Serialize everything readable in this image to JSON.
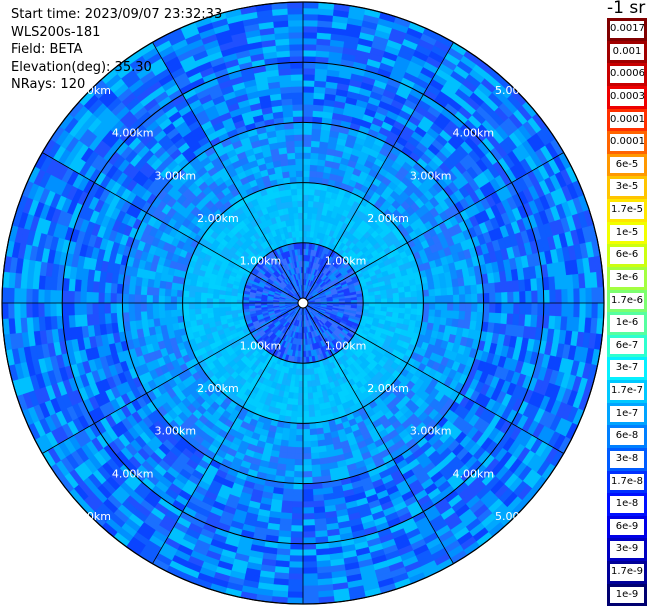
{
  "info": {
    "start_time": "Start time: 2023/09/07 23:32:33",
    "instrument": "WLS200s-181",
    "field": "Field: BETA",
    "elevation": "Elevation(deg): 35.30",
    "nrays": "NRays: 120"
  },
  "chart_data": {
    "type": "heatmap",
    "projection": "polar",
    "range_rings_km": [
      1,
      2,
      3,
      4,
      5
    ],
    "max_range_km": 5.0,
    "spoke_count": 12,
    "ring_labels": [
      "1.00km",
      "2.00km",
      "3.00km",
      "4.00km",
      "5.00km"
    ],
    "colorbar_unit": "-1 sr",
    "colorbar_labels": [
      "0.0017",
      "0.001",
      "0.0006",
      "0.0003",
      "0.00017",
      "0.0001",
      "6e-5",
      "3e-5",
      "1.7e-5",
      "1e-5",
      "6e-6",
      "3e-6",
      "1.7e-6",
      "1e-6",
      "6e-7",
      "3e-7",
      "1.7e-7",
      "1e-7",
      "6e-8",
      "3e-8",
      "1.7e-8",
      "1e-8",
      "6e-9",
      "3e-9",
      "1.7e-9",
      "1e-9"
    ],
    "colorbar_colors": [
      "#800000",
      "#a00000",
      "#c80000",
      "#ee0000",
      "#ff3000",
      "#ff6400",
      "#ff9800",
      "#ffc400",
      "#ffe600",
      "#f2ff00",
      "#ccff10",
      "#a4ff40",
      "#7cff70",
      "#56ffa0",
      "#2effd0",
      "#06f0ff",
      "#00c8ff",
      "#00a4ff",
      "#0080ff",
      "#005cff",
      "#0030ff",
      "#0010ff",
      "#0000e6",
      "#0000c0",
      "#000098",
      "#000070"
    ],
    "background_colors": {
      "inner": "#1f60ff",
      "near": "#00c2ff",
      "mid": "#00aaff",
      "outer": "#0e5cff"
    }
  }
}
